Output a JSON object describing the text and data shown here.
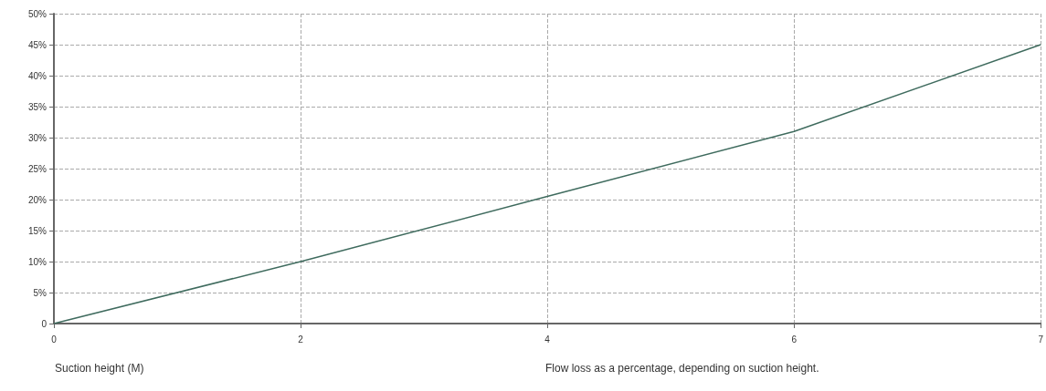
{
  "chart_data": {
    "type": "line",
    "xlabel": "Suction height (M)",
    "annotations": [
      "Flow loss as a percentage, depending on suction height."
    ],
    "categories": [
      "0",
      "2",
      "4",
      "6",
      "7"
    ],
    "series": [
      {
        "color": "#3f6b5e",
        "values": [
          0,
          10,
          20.5,
          31,
          45
        ]
      }
    ],
    "ylim": [
      0,
      50
    ],
    "yticks": [
      0,
      {
        "value": 5,
        "label": "5%"
      },
      {
        "value": 10,
        "label": "10%"
      },
      {
        "value": 15,
        "label": "15%"
      },
      {
        "value": 20,
        "label": "20%"
      },
      {
        "value": 25,
        "label": "25%"
      },
      {
        "value": 30,
        "label": "30%"
      },
      {
        "value": 35,
        "label": "35%"
      },
      {
        "value": 40,
        "label": "40%"
      },
      {
        "value": 45,
        "label": "45%"
      },
      {
        "value": 50,
        "label": "50%"
      }
    ],
    "grid": true,
    "marker": "none",
    "line_style": "solid"
  }
}
